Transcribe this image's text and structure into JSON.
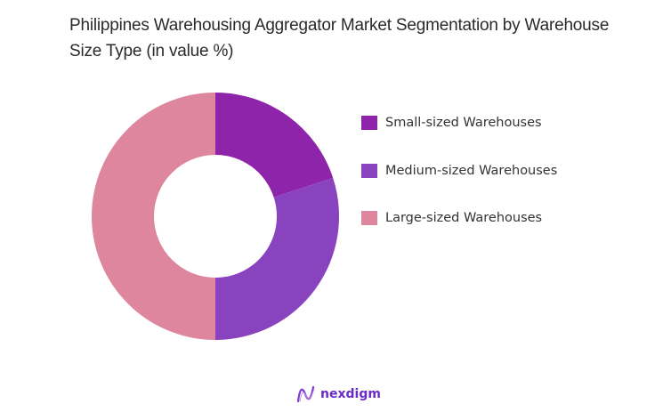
{
  "title": "Philippines Warehousing Aggregator Market Segmentation by Warehouse Size Type (in value %)",
  "legend": {
    "items": [
      {
        "label": "Small-sized Warehouses",
        "color": "#8e24aa"
      },
      {
        "label": "Medium-sized Warehouses",
        "color": "#8a43be"
      },
      {
        "label": "Large-sized Warehouses",
        "color": "#de869d"
      }
    ]
  },
  "logo": {
    "text": "nexdigm",
    "icon": "nexdigm-wave-icon"
  },
  "chart_data": {
    "type": "pie",
    "variant": "donut",
    "title": "Philippines Warehousing Aggregator Market Segmentation by Warehouse Size Type (in value %)",
    "categories": [
      "Small-sized Warehouses",
      "Medium-sized Warehouses",
      "Large-sized Warehouses"
    ],
    "values": [
      20,
      30,
      50
    ],
    "colors": [
      "#8e24aa",
      "#8a43be",
      "#de869d"
    ],
    "start_angle": "12 o'clock, clockwise",
    "legend_position": "right",
    "data_labels": false
  }
}
